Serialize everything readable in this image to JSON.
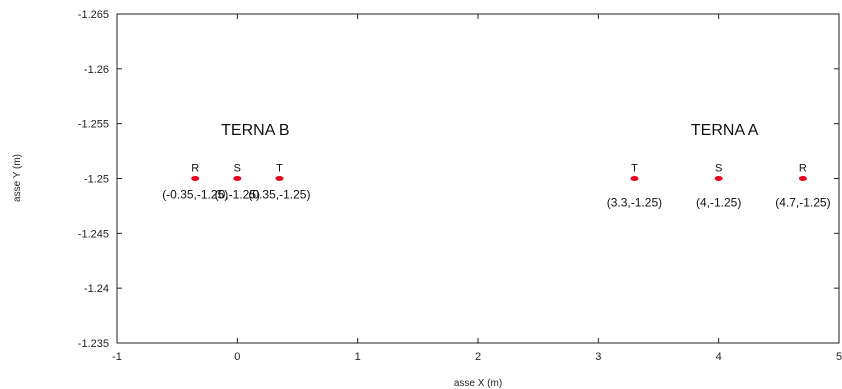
{
  "chart_data": {
    "type": "scatter",
    "title": "",
    "xlabel": "asse X (m)",
    "ylabel": "asse Y (m)",
    "xlim": [
      -1,
      5
    ],
    "ylim": [
      -1.235,
      -1.265
    ],
    "y_axis_inverted": true,
    "grid": false,
    "marker_color": "#e8001c",
    "x_ticks": [
      "-1",
      "0",
      "1",
      "2",
      "3",
      "4",
      "5"
    ],
    "y_ticks": [
      "-1.265",
      "-1.26",
      "-1.255",
      "-1.25",
      "-1.245",
      "-1.24",
      "-1.235"
    ],
    "groups": [
      {
        "label": "TERNA B",
        "label_x": 0.15,
        "label_y": -1.2545
      },
      {
        "label": "TERNA A",
        "label_x": 4.05,
        "label_y": -1.2545
      }
    ],
    "points": [
      {
        "phase": "R",
        "x": -0.35,
        "y": -1.25,
        "coord": "(-0.35,-1.25)"
      },
      {
        "phase": "S",
        "x": 0,
        "y": -1.25,
        "coord": "(0,-1.25)"
      },
      {
        "phase": "T",
        "x": 0.35,
        "y": -1.25,
        "coord": "(0.35,-1.25)"
      },
      {
        "phase": "T",
        "x": 3.3,
        "y": -1.25,
        "coord": "(3.3,-1.25)"
      },
      {
        "phase": "S",
        "x": 4,
        "y": -1.25,
        "coord": "(4,-1.25)"
      },
      {
        "phase": "R",
        "x": 4.7,
        "y": -1.25,
        "coord": "(4.7,-1.25)"
      }
    ]
  }
}
